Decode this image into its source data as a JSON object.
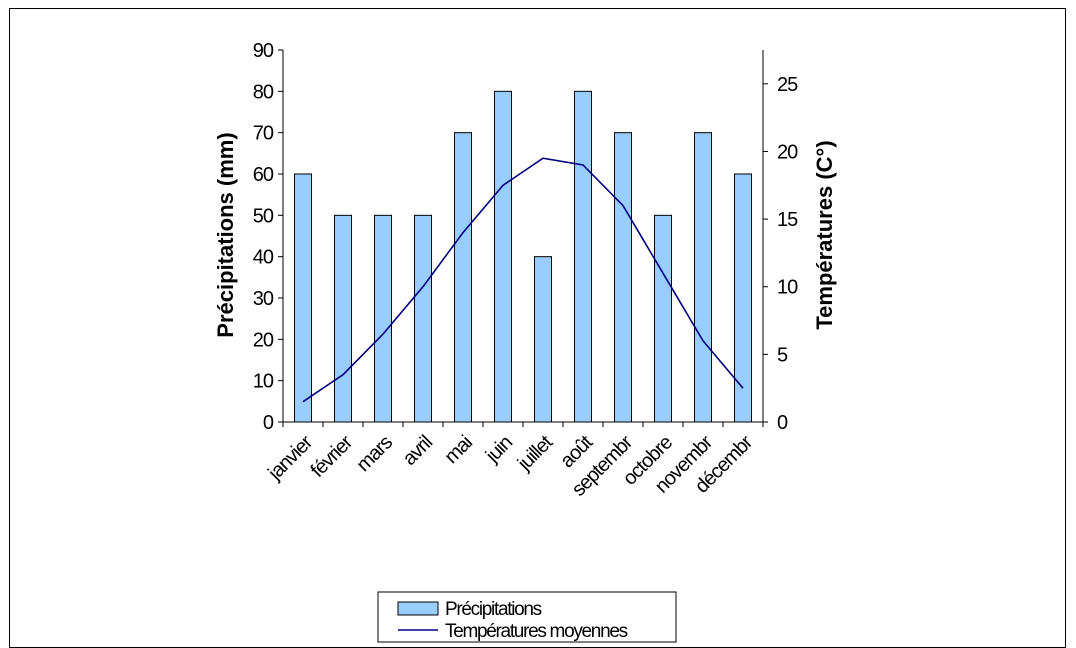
{
  "chart_data": {
    "type": "bar",
    "categories": [
      "janvier",
      "février",
      "mars",
      "avril",
      "mai",
      "juin",
      "juillet",
      "août",
      "septembre",
      "octobre",
      "novembre",
      "décembre"
    ],
    "category_labels_shown": [
      "janvier",
      "février",
      "mars",
      "avril",
      "mai",
      "juin",
      "juillet",
      "août",
      "septembr",
      "octobre",
      "novembr",
      "décembr"
    ],
    "series": [
      {
        "name": "Précipitations",
        "type": "bar",
        "axis": "left",
        "color": "#99ccff",
        "values": [
          60,
          50,
          50,
          50,
          70,
          80,
          40,
          80,
          70,
          50,
          70,
          60
        ]
      },
      {
        "name": "Températures moyennes",
        "type": "line",
        "axis": "right",
        "color": "#000080",
        "values": [
          1.5,
          3.5,
          6.5,
          10,
          14,
          17.5,
          19.5,
          19,
          16,
          11,
          6,
          2.5
        ]
      }
    ],
    "ylabel": "Précipitations (mm)",
    "y2label": "Températures (C°)",
    "ylim": [
      0,
      90
    ],
    "y_ticks": [
      0,
      10,
      20,
      30,
      40,
      50,
      60,
      70,
      80,
      90
    ],
    "y2lim": [
      0,
      27.5
    ],
    "y2_ticks": [
      0,
      5,
      10,
      15,
      20,
      25
    ],
    "grid": false,
    "legend_position": "bottom"
  }
}
